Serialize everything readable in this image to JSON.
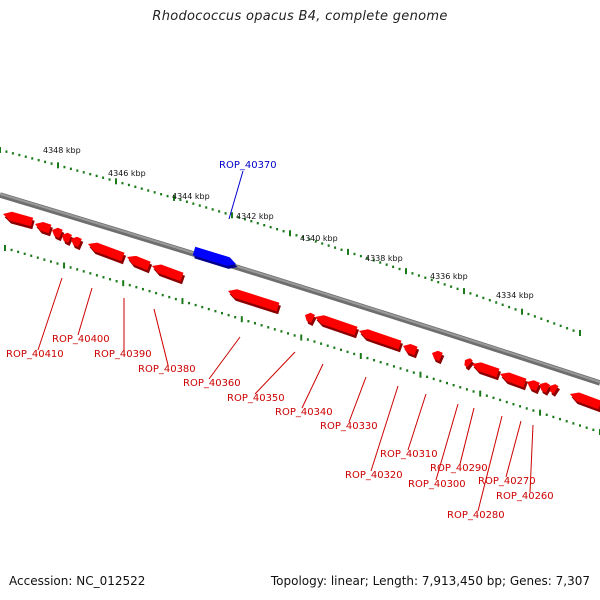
{
  "title": "Rhodococcus opacus B4, complete genome",
  "footer": {
    "accession": "Accession: NC_012522",
    "summary": "Topology: linear; Length: 7,913,450 bp; Genes: 7,307"
  },
  "colors": {
    "backbone": "#808080",
    "forward_gene": "#0000ff",
    "reverse_gene": "#ff0000",
    "tick": "#1a7a1a",
    "forward_label": "#0000cc",
    "reverse_label": "#cc0000"
  },
  "scale_labels": [
    "4348 kbp",
    "4346 kbp",
    "4344 kbp",
    "4342 kbp",
    "4340 kbp",
    "4338 kbp",
    "4336 kbp",
    "4334 kbp"
  ],
  "genes": [
    {
      "label": "ROP_40370",
      "strand": "forward"
    },
    {
      "label": "ROP_40410",
      "strand": "reverse"
    },
    {
      "label": "ROP_40400",
      "strand": "reverse"
    },
    {
      "label": "ROP_40390",
      "strand": "reverse"
    },
    {
      "label": "ROP_40380",
      "strand": "reverse"
    },
    {
      "label": "ROP_40360",
      "strand": "reverse"
    },
    {
      "label": "ROP_40350",
      "strand": "reverse"
    },
    {
      "label": "ROP_40340",
      "strand": "reverse"
    },
    {
      "label": "ROP_40330",
      "strand": "reverse"
    },
    {
      "label": "ROP_40320",
      "strand": "reverse"
    },
    {
      "label": "ROP_40310",
      "strand": "reverse"
    },
    {
      "label": "ROP_40300",
      "strand": "reverse"
    },
    {
      "label": "ROP_40290",
      "strand": "reverse"
    },
    {
      "label": "ROP_40280",
      "strand": "reverse"
    },
    {
      "label": "ROP_40270",
      "strand": "reverse"
    },
    {
      "label": "ROP_40260",
      "strand": "reverse"
    }
  ]
}
